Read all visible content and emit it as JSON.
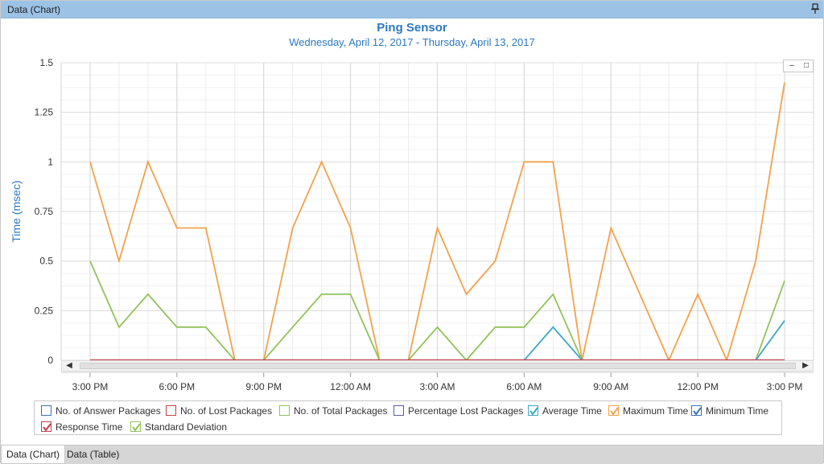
{
  "window": {
    "title": "Data (Chart)"
  },
  "tabs": [
    {
      "label": "Data (Chart)",
      "active": true
    },
    {
      "label": "Data (Table)",
      "active": false
    }
  ],
  "colors": {
    "title": "#2b78c2",
    "orange": "#f4a14a",
    "green": "#92c35a",
    "blue": "#3ea6c8",
    "red": "#c0404a",
    "grid": "#e4e4e4",
    "legend_answer": "#3b74b8",
    "legend_lost": "#c0404a",
    "legend_total": "#92c35a",
    "legend_pct": "#5a5a9a",
    "legend_avg": "#3ea6c8",
    "legend_max": "#f4a14a",
    "legend_min": "#3b74b8",
    "legend_resp": "#c0404a",
    "legend_std": "#92c35a"
  },
  "legend": [
    {
      "label": "No. of Answer Packages",
      "checked": false,
      "color": "#3b74b8"
    },
    {
      "label": "No. of Lost Packages",
      "checked": false,
      "color": "#c0404a"
    },
    {
      "label": "No. of Total Packages",
      "checked": false,
      "color": "#92c35a"
    },
    {
      "label": "Percentage Lost Packages",
      "checked": false,
      "color": "#5a5a9a"
    },
    {
      "label": "Average Time",
      "checked": true,
      "color": "#3ea6c8"
    },
    {
      "label": "Maximum Time",
      "checked": true,
      "color": "#f4a14a"
    },
    {
      "label": "Minimum Time",
      "checked": true,
      "color": "#3b74b8"
    },
    {
      "label": "Response Time",
      "checked": true,
      "color": "#c0404a"
    },
    {
      "label": "Standard Deviation",
      "checked": true,
      "color": "#92c35a"
    }
  ],
  "chart_data": {
    "type": "line",
    "title": "Ping Sensor",
    "subtitle": "Wednesday, April 12, 2017 - Thursday, April 13, 2017",
    "xlabel": "",
    "ylabel": "Time (msec)",
    "ylim": [
      0,
      1.5
    ],
    "yticks": [
      "0",
      "0.25",
      "0.5",
      "0.75",
      "1",
      "1.25",
      "1.5"
    ],
    "ytick_values": [
      0,
      0.25,
      0.5,
      0.75,
      1,
      1.25,
      1.5
    ],
    "xticks": [
      "3:00 PM",
      "6:00 PM",
      "9:00 PM",
      "12:00 AM",
      "3:00 AM",
      "6:00 AM",
      "9:00 AM",
      "12:00 PM",
      "3:00 PM"
    ],
    "xtick_hours": [
      15,
      18,
      21,
      24,
      27,
      30,
      33,
      36,
      39
    ],
    "x_hours": [
      15,
      16,
      17,
      18,
      19,
      20,
      21,
      22,
      23,
      24,
      25,
      26,
      27,
      28,
      29,
      30,
      31,
      32,
      33,
      34,
      35,
      36,
      37,
      38,
      39
    ],
    "grid": true,
    "legend_position": "bottom",
    "series": [
      {
        "name": "Maximum Time",
        "color": "#f4a14a",
        "values": [
          1,
          0.5,
          1,
          0.667,
          0.667,
          0,
          0,
          0.667,
          1,
          0.667,
          0,
          0,
          0.667,
          0.333,
          0.5,
          1,
          1,
          0,
          0.667,
          0.333,
          0,
          0.333,
          0,
          0.5,
          1.4
        ]
      },
      {
        "name": "Standard Deviation",
        "color": "#92c35a",
        "values": [
          0.5,
          0.167,
          0.333,
          0.167,
          0.167,
          0,
          0,
          0.167,
          0.333,
          0.333,
          0,
          0,
          0.167,
          0,
          0.167,
          0.167,
          0.333,
          0,
          0,
          0,
          0,
          0,
          0,
          0,
          0.4
        ]
      },
      {
        "name": "Average Time",
        "color": "#3ea6c8",
        "values": [
          0,
          0,
          0,
          0,
          0,
          0,
          0,
          0,
          0,
          0,
          0,
          0,
          0,
          0,
          0,
          0,
          0.167,
          0,
          0,
          0,
          0,
          0,
          0,
          0,
          0.2
        ]
      },
      {
        "name": "Minimum Time",
        "color": "#3b74b8",
        "values": [
          0,
          0,
          0,
          0,
          0,
          0,
          0,
          0,
          0,
          0,
          0,
          0,
          0,
          0,
          0,
          0,
          0,
          0,
          0,
          0,
          0,
          0,
          0,
          0,
          0
        ]
      },
      {
        "name": "Response Time",
        "color": "#c0404a",
        "values": [
          0,
          0,
          0,
          0,
          0,
          0,
          0,
          0,
          0,
          0,
          0,
          0,
          0,
          0,
          0,
          0,
          0,
          0,
          0,
          0,
          0,
          0,
          0,
          0,
          0
        ]
      }
    ]
  }
}
